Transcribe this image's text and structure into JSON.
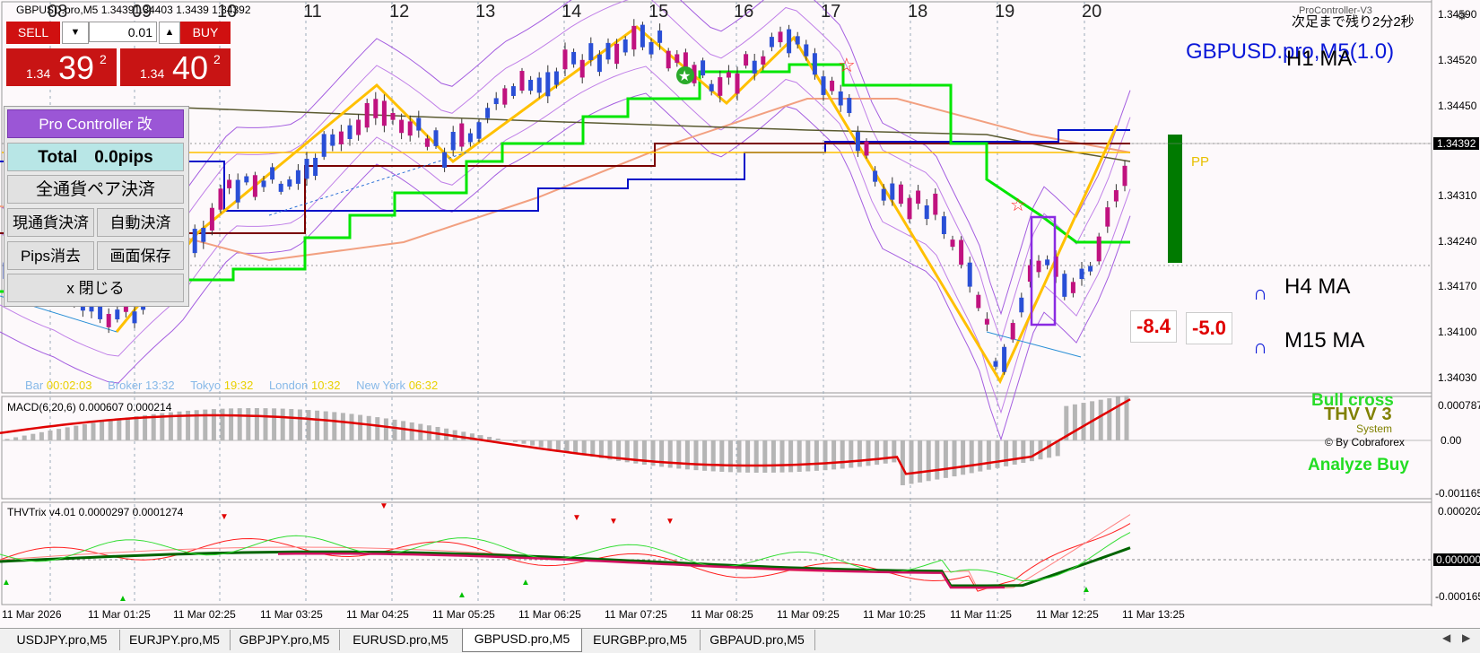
{
  "window": {
    "title": "GBPUSD.pro,M5",
    "ohlc": "1.34391.34403 1.3439 1.34392"
  },
  "top_dates": [
    "08",
    "09",
    "10",
    "11",
    "12",
    "13",
    "14",
    "15",
    "16",
    "17",
    "18",
    "19",
    "20"
  ],
  "countdown": "次足まで残り2分2秒",
  "indicator_name": "ProController-V3",
  "symbol_label": "GBPUSD.pro,M5(1.0)",
  "ma_labels": {
    "h1": "H1 MA",
    "h4": "H4 MA",
    "m15": "M15 MA"
  },
  "pp_label": "PP",
  "values": {
    "v1": "-8.4",
    "v2": "-5.0"
  },
  "trade": {
    "sell_label": "SELL",
    "buy_label": "BUY",
    "lot": "0.01",
    "sell_prefix": "1.34",
    "sell_big": "39",
    "sell_sup": "2",
    "buy_prefix": "1.34",
    "buy_big": "40",
    "buy_sup": "2"
  },
  "controller": {
    "title": "Pro Controller 改",
    "total": "Total　0.0pips",
    "close_all": "全通貨ペア決済",
    "close_current": "現通貨決済",
    "auto_close": "自動決済",
    "pips_clear": "Pips消去",
    "save_screen": "画面保存",
    "close": "x 閉じる"
  },
  "sessions": [
    {
      "label": "Bar",
      "value": "00:02:03"
    },
    {
      "label": "Broker",
      "value": "13:32"
    },
    {
      "label": "Tokyo",
      "value": "19:32"
    },
    {
      "label": "London",
      "value": "10:32"
    },
    {
      "label": "New York",
      "value": "06:32"
    }
  ],
  "price_axis": [
    "1.34590",
    "1.34520",
    "1.34450",
    "1.34392",
    "1.34310",
    "1.34240",
    "1.34170",
    "1.34100",
    "1.34030"
  ],
  "macd": {
    "label": "MACD(6,20,6) 0.000607 0.000214",
    "axis": [
      "0.000787",
      "0.00",
      "-0.001165"
    ],
    "bull_cross": "Bull cross",
    "thv": "THV V 3",
    "system": "System",
    "by": "© By Cobraforex",
    "analyze": "Analyze Buy"
  },
  "trix": {
    "label": "THVTrix v4.01 0.0000297 0.0001274",
    "axis": [
      "0.000202",
      "0.000000",
      "-0.000165"
    ]
  },
  "time_axis": [
    "11 Mar 2026",
    "11 Mar 01:25",
    "11 Mar 02:25",
    "11 Mar 03:25",
    "11 Mar 04:25",
    "11 Mar 05:25",
    "11 Mar 06:25",
    "11 Mar 07:25",
    "11 Mar 08:25",
    "11 Mar 09:25",
    "11 Mar 10:25",
    "11 Mar 11:25",
    "11 Mar 12:25",
    "11 Mar 13:25"
  ],
  "tabs": [
    "USDJPY.pro,M5",
    "EURJPY.pro,M5",
    "GBPJPY.pro,M5",
    "EURUSD.pro,M5",
    "GBPUSD.pro,M5",
    "EURGBP.pro,M5",
    "GBPAUD.pro,M5"
  ],
  "active_tab": 4,
  "colors": {
    "bull": "#c0127f",
    "bear": "#2a4fd6",
    "green_line": "#00e600",
    "zigzag": "#ffc000",
    "blue_line": "#0010c8",
    "maroon": "#7a0000"
  }
}
